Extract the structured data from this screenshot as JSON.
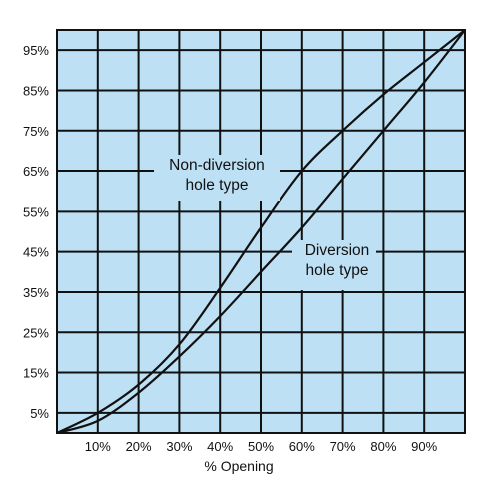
{
  "chart_data": {
    "type": "line",
    "title": "",
    "xlabel": "% Opening",
    "ylabel": "",
    "xlim": [
      0,
      100
    ],
    "ylim": [
      0,
      100
    ],
    "grid": true,
    "legend": "none",
    "x_ticks": [
      10,
      20,
      30,
      40,
      50,
      60,
      70,
      80,
      90
    ],
    "x_tick_labels": [
      "10%",
      "20%",
      "30%",
      "40%",
      "50%",
      "60%",
      "70%",
      "80%",
      "90%"
    ],
    "y_ticks": [
      5,
      15,
      25,
      35,
      45,
      55,
      65,
      75,
      85,
      95
    ],
    "y_tick_labels": [
      "5%",
      "15%",
      "25%",
      "35%",
      "45%",
      "55%",
      "65%",
      "75%",
      "85%",
      "95%"
    ],
    "series": [
      {
        "name": "Non-diversion hole type",
        "x": [
          0,
          10,
          20,
          30,
          40,
          50,
          60,
          70,
          80,
          90,
          100
        ],
        "y": [
          0,
          5,
          12,
          22,
          36,
          51,
          65,
          75,
          84,
          92,
          100
        ]
      },
      {
        "name": "Diversion hole type",
        "x": [
          0,
          10,
          20,
          30,
          40,
          50,
          60,
          70,
          80,
          90,
          100
        ],
        "y": [
          0,
          3,
          10,
          19,
          29,
          40,
          51,
          63,
          75,
          87,
          100
        ]
      }
    ],
    "annotations": [
      {
        "lines": [
          "Non-diversion",
          "hole type"
        ]
      },
      {
        "lines": [
          "Diversion",
          "hole type"
        ]
      }
    ],
    "colors": {
      "background": "#bde0f5",
      "grid": "#111111",
      "line": "#111111"
    }
  }
}
